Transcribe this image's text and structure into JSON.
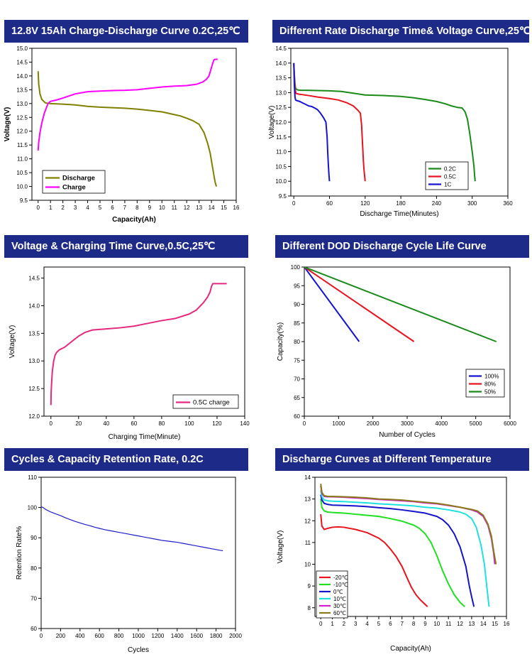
{
  "colors": {
    "banner_bg": "#1e2a87",
    "banner_text": "#ffffff",
    "olive": "#808000",
    "magenta": "#ff00ff",
    "green": "#1a8a1a",
    "red": "#e8141e",
    "blue": "#1414d2",
    "pink": "#e6287e",
    "navy": "#1f1fc8"
  },
  "chart_data": [
    {
      "id": "c1",
      "type": "line",
      "title": "12.8V 15Ah Charge-Discharge Curve 0.2C,25℃",
      "xlabel": "Capacity(Ah)",
      "ylabel": "Voltage(V)",
      "xlim": [
        -0.5,
        16
      ],
      "ylim": [
        9.5,
        15.0
      ],
      "xticks": [
        "0",
        "1",
        "2",
        "3",
        "4",
        "5",
        "6",
        "7",
        "8",
        "9",
        "10",
        "11",
        "12",
        "13",
        "14",
        "15",
        "16"
      ],
      "yticks": [
        "9.5",
        "10.0",
        "10.5",
        "11.0",
        "11.5",
        "12.0",
        "12.5",
        "13.0",
        "13.5",
        "14.0",
        "14.5",
        "15.0"
      ],
      "grid": false,
      "legend_position": "bottom-left",
      "series": [
        {
          "name": "Discharge",
          "color": "#808000",
          "x": [
            0,
            0.05,
            0.15,
            0.3,
            0.6,
            1,
            2,
            3,
            4,
            5,
            6,
            7,
            8,
            9,
            10,
            11,
            11.5,
            12,
            12.5,
            13,
            13.4,
            13.7,
            13.9,
            14.05,
            14.2,
            14.3,
            14.4
          ],
          "y": [
            14.17,
            13.7,
            13.35,
            13.15,
            13.02,
            13.0,
            12.98,
            12.95,
            12.9,
            12.87,
            12.85,
            12.83,
            12.8,
            12.75,
            12.7,
            12.6,
            12.55,
            12.47,
            12.38,
            12.25,
            11.95,
            11.55,
            11.2,
            10.8,
            10.4,
            10.15,
            10.0
          ]
        },
        {
          "name": "Charge",
          "color": "#ff00ff",
          "x": [
            0,
            0.05,
            0.15,
            0.3,
            0.5,
            0.8,
            1,
            1.5,
            2,
            3,
            4,
            5,
            6,
            7,
            8,
            9,
            10,
            11,
            12,
            12.8,
            13.3,
            13.6,
            13.8,
            13.9,
            14.0,
            14.1,
            14.2,
            14.3,
            14.5
          ],
          "y": [
            11.3,
            11.6,
            11.95,
            12.3,
            12.65,
            13.0,
            13.08,
            13.13,
            13.2,
            13.35,
            13.43,
            13.45,
            13.47,
            13.48,
            13.5,
            13.55,
            13.6,
            13.63,
            13.65,
            13.7,
            13.78,
            13.88,
            14.0,
            14.15,
            14.3,
            14.45,
            14.58,
            14.6,
            14.6
          ]
        }
      ]
    },
    {
      "id": "c2",
      "type": "line",
      "title": "Different Rate Discharge Time& Voltage Curve,25℃",
      "xlabel": "Discharge Time(Minutes)",
      "ylabel": "Voltage(V)",
      "xlim": [
        -5,
        360
      ],
      "ylim": [
        9.5,
        14.5
      ],
      "xticks": [
        "0",
        "60",
        "120",
        "180",
        "240",
        "300",
        "360"
      ],
      "yticks": [
        "9.5",
        "10.0",
        "10.5",
        "11.0",
        "11.5",
        "12.0",
        "12.5",
        "13.0",
        "13.5",
        "14.0",
        "14.5"
      ],
      "grid": false,
      "legend_position": "bottom-right",
      "series": [
        {
          "name": "0.2C",
          "color": "#1a8a1a",
          "x": [
            0,
            1,
            2,
            3,
            5,
            10,
            20,
            40,
            60,
            80,
            100,
            120,
            150,
            180,
            200,
            220,
            240,
            255,
            265,
            275,
            283,
            288,
            292,
            296,
            300,
            303,
            304,
            305
          ],
          "y": [
            14.0,
            13.6,
            13.3,
            13.15,
            13.1,
            13.08,
            13.08,
            13.07,
            13.06,
            13.04,
            12.98,
            12.92,
            12.9,
            12.87,
            12.83,
            12.77,
            12.7,
            12.62,
            12.55,
            12.5,
            12.48,
            12.35,
            12.1,
            11.6,
            11.0,
            10.5,
            10.2,
            10.0
          ]
        },
        {
          "name": "0.5C",
          "color": "#e8141e",
          "x": [
            0,
            1,
            2,
            4,
            8,
            15,
            25,
            40,
            60,
            75,
            90,
            100,
            108,
            112,
            114,
            115,
            116,
            117,
            118,
            119,
            120
          ],
          "y": [
            14.0,
            13.5,
            13.1,
            12.97,
            12.95,
            12.93,
            12.9,
            12.85,
            12.8,
            12.75,
            12.65,
            12.55,
            12.4,
            12.3,
            11.9,
            11.5,
            11.1,
            10.7,
            10.4,
            10.2,
            10.0
          ]
        },
        {
          "name": "1C",
          "color": "#1414d2",
          "x": [
            0,
            1,
            2,
            3,
            5,
            10,
            15,
            20,
            25,
            30,
            35,
            40,
            45,
            50,
            54,
            56,
            57,
            58,
            59,
            60
          ],
          "y": [
            14.0,
            13.2,
            12.85,
            12.75,
            12.73,
            12.7,
            12.65,
            12.6,
            12.55,
            12.53,
            12.48,
            12.42,
            12.3,
            12.15,
            12.0,
            11.5,
            11.0,
            10.6,
            10.25,
            10.0
          ]
        }
      ]
    },
    {
      "id": "c3",
      "type": "line",
      "title": "Voltage & Charging Time Curve,0.5C,25℃",
      "xlabel": "Charging Time(Minute)",
      "ylabel": "Voltage(V)",
      "xlim": [
        -5,
        140
      ],
      "ylim": [
        12.0,
        14.7
      ],
      "xticks": [
        "0",
        "20",
        "40",
        "60",
        "80",
        "100",
        "120",
        "140"
      ],
      "yticks": [
        "12.0",
        "12.5",
        "13.0",
        "13.5",
        "14.0",
        "14.5"
      ],
      "grid": false,
      "legend_position": "bottom-right",
      "series": [
        {
          "name": "0.5C  charge",
          "color": "#e6287e",
          "x": [
            0,
            0.2,
            0.5,
            1,
            2,
            3,
            4,
            6,
            10,
            15,
            20,
            25,
            30,
            35,
            40,
            50,
            60,
            70,
            80,
            90,
            100,
            105,
            110,
            113,
            115,
            116,
            117,
            118,
            120,
            122,
            125,
            127
          ],
          "y": [
            12.2,
            12.45,
            12.6,
            12.8,
            13.0,
            13.1,
            13.15,
            13.2,
            13.25,
            13.35,
            13.45,
            13.52,
            13.56,
            13.57,
            13.58,
            13.6,
            13.63,
            13.68,
            13.73,
            13.77,
            13.85,
            13.92,
            14.05,
            14.15,
            14.25,
            14.35,
            14.4,
            14.4,
            14.4,
            14.4,
            14.4,
            14.4
          ]
        }
      ]
    },
    {
      "id": "c4",
      "type": "line",
      "title": "Different DOD Discharge Cycle Life Curve",
      "xlabel": "Number of Cycles",
      "ylabel": "Capacity(%)",
      "xlim": [
        0,
        6000
      ],
      "ylim": [
        60,
        100
      ],
      "xticks": [
        "0",
        "1000",
        "2000",
        "3000",
        "4000",
        "5000",
        "6000"
      ],
      "yticks": [
        "60",
        "65",
        "70",
        "75",
        "80",
        "85",
        "90",
        "95",
        "100"
      ],
      "grid": false,
      "legend_position": "bottom-right",
      "series": [
        {
          "name": "100%",
          "color": "#1414d2",
          "x": [
            0,
            1600
          ],
          "y": [
            100,
            80
          ]
        },
        {
          "name": "80%",
          "color": "#e8141e",
          "x": [
            0,
            3200
          ],
          "y": [
            100,
            80
          ]
        },
        {
          "name": "50%",
          "color": "#1a8a1a",
          "x": [
            0,
            5600
          ],
          "y": [
            100,
            80
          ]
        }
      ]
    },
    {
      "id": "c5",
      "type": "line",
      "title": "Cycles & Capacity Retention Rate, 0.2C",
      "xlabel": "Cycles",
      "ylabel": "Retention Rate%",
      "xlim": [
        0,
        2000
      ],
      "ylim": [
        60,
        110
      ],
      "xticks": [
        "0",
        "200",
        "400",
        "600",
        "800",
        "1000",
        "1200",
        "1400",
        "1600",
        "1800",
        "2000"
      ],
      "yticks": [
        "60",
        "70",
        "80",
        "90",
        "100",
        "110"
      ],
      "grid": false,
      "legend_position": "none",
      "series": [
        {
          "name": "",
          "color": "#1f1fc8",
          "x": [
            0,
            20,
            50,
            100,
            150,
            200,
            250,
            300,
            350,
            400,
            450,
            500,
            550,
            600,
            650,
            700,
            750,
            800,
            850,
            900,
            950,
            1000,
            1050,
            1100,
            1150,
            1200,
            1250,
            1300,
            1350,
            1400,
            1450,
            1500,
            1550,
            1600,
            1650,
            1700,
            1750,
            1800,
            1850,
            1870
          ],
          "y": [
            100.2,
            100.0,
            99.3,
            98.5,
            97.9,
            97.3,
            96.6,
            96.0,
            95.4,
            94.9,
            94.4,
            94.0,
            93.5,
            93.1,
            92.7,
            92.4,
            92.1,
            91.8,
            91.5,
            91.2,
            90.9,
            90.6,
            90.3,
            90.0,
            89.7,
            89.4,
            89.1,
            88.9,
            88.7,
            88.5,
            88.2,
            87.9,
            87.6,
            87.3,
            87.0,
            86.7,
            86.4,
            86.1,
            85.8,
            85.7
          ]
        }
      ]
    },
    {
      "id": "c6",
      "type": "line",
      "title": "Discharge Curves at Different Temperature",
      "xlabel": "Capacity(Ah)",
      "ylabel": "Voltage(V)",
      "xlim": [
        -0.5,
        16
      ],
      "ylim": [
        7.6,
        14
      ],
      "xticks": [
        "0",
        "1",
        "2",
        "3",
        "4",
        "5",
        "6",
        "7",
        "8",
        "9",
        "10",
        "11",
        "12",
        "13",
        "14",
        "15",
        "16"
      ],
      "yticks": [
        "8",
        "9",
        "10",
        "11",
        "12",
        "13",
        "14"
      ],
      "grid": false,
      "legend_position": "bottom-left",
      "series": [
        {
          "name": "-20℃",
          "color": "#e8141e",
          "x": [
            0,
            0.1,
            0.3,
            0.6,
            1,
            1.5,
            2,
            3,
            4,
            5,
            5.5,
            6,
            6.5,
            7,
            7.5,
            7.8,
            8.2,
            8.6,
            9.0,
            9.2
          ],
          "y": [
            12.3,
            11.75,
            11.6,
            11.65,
            11.7,
            11.72,
            11.7,
            11.6,
            11.45,
            11.2,
            11.0,
            10.7,
            10.35,
            9.9,
            9.3,
            8.95,
            8.6,
            8.35,
            8.15,
            8.05
          ]
        },
        {
          "name": "-10℃",
          "color": "#20e020",
          "x": [
            0,
            0.1,
            0.3,
            0.6,
            1,
            2,
            3,
            4,
            5,
            6,
            7,
            8,
            8.5,
            9,
            9.5,
            10,
            10.5,
            11,
            11.5,
            12,
            12.4
          ],
          "y": [
            13.0,
            12.6,
            12.45,
            12.4,
            12.38,
            12.35,
            12.3,
            12.25,
            12.2,
            12.1,
            11.98,
            11.8,
            11.65,
            11.4,
            11.0,
            10.4,
            9.7,
            9.1,
            8.6,
            8.25,
            8.05
          ]
        },
        {
          "name": "0℃",
          "color": "#1414c8",
          "x": [
            0,
            0.1,
            0.3,
            0.6,
            1,
            2,
            3,
            4,
            5,
            6,
            7,
            8,
            9,
            10,
            10.5,
            11,
            11.5,
            12,
            12.5,
            12.8,
            13.0,
            13.2
          ],
          "y": [
            13.2,
            12.95,
            12.8,
            12.75,
            12.72,
            12.7,
            12.68,
            12.65,
            12.6,
            12.56,
            12.5,
            12.43,
            12.35,
            12.2,
            12.05,
            11.8,
            11.4,
            10.8,
            9.9,
            9.0,
            8.5,
            8.05
          ]
        },
        {
          "name": "10℃",
          "color": "#20e0e0",
          "x": [
            0,
            0.1,
            0.3,
            0.6,
            1,
            2,
            3,
            4,
            5,
            6,
            7,
            8,
            9,
            10,
            11,
            12,
            12.5,
            13,
            13.4,
            13.8,
            14.1,
            14.3,
            14.5
          ],
          "y": [
            13.4,
            13.1,
            12.95,
            12.92,
            12.9,
            12.88,
            12.85,
            12.82,
            12.78,
            12.75,
            12.72,
            12.68,
            12.62,
            12.58,
            12.5,
            12.4,
            12.3,
            12.1,
            11.7,
            10.9,
            10.0,
            9.0,
            8.05
          ]
        },
        {
          "name": "30℃",
          "color": "#d020d0",
          "x": [
            0,
            0.1,
            0.3,
            0.6,
            1,
            2,
            3,
            4,
            5,
            6,
            7,
            8,
            9,
            10,
            11,
            12,
            13,
            13.5,
            14,
            14.4,
            14.7,
            14.9,
            15.0
          ],
          "y": [
            13.6,
            13.25,
            13.12,
            13.1,
            13.1,
            13.08,
            13.05,
            13.02,
            12.98,
            12.95,
            12.92,
            12.88,
            12.82,
            12.78,
            12.7,
            12.62,
            12.5,
            12.4,
            12.2,
            11.8,
            11.2,
            10.5,
            10.0
          ]
        },
        {
          "name": "60℃",
          "color": "#8a7a1a",
          "x": [
            0,
            0.1,
            0.3,
            0.6,
            1,
            2,
            3,
            4,
            5,
            6,
            7,
            8,
            9,
            10,
            11,
            12,
            13,
            13.5,
            14,
            14.4,
            14.7,
            14.9,
            15.1
          ],
          "y": [
            13.7,
            13.3,
            13.15,
            13.12,
            13.12,
            13.1,
            13.08,
            13.05,
            13.0,
            12.98,
            12.95,
            12.9,
            12.85,
            12.8,
            12.72,
            12.62,
            12.52,
            12.45,
            12.25,
            11.85,
            11.3,
            10.6,
            10.0
          ]
        }
      ]
    }
  ]
}
